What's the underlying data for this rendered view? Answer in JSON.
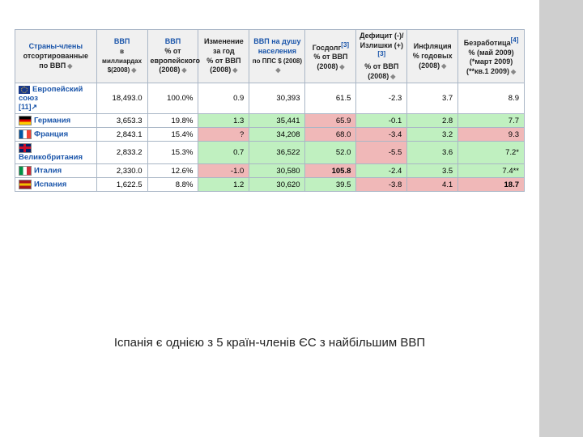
{
  "caption": "Іспанія є однією з 5 країн-членів ЄС з найбільшим ВВП",
  "columns": [
    {
      "main": "Страны-члены",
      "sub": "отсортированные по ВВП",
      "blueMain": true
    },
    {
      "main": "ВВП",
      "sub": "в миллиардах $(2008)",
      "blueMain": true,
      "subSmall": true
    },
    {
      "main": "ВВП",
      "sub": "% от европейского (2008)",
      "blueMain": true
    },
    {
      "main": "Изменение за год",
      "sub": "% от ВВП (2008)"
    },
    {
      "main": "ВВП на душу населения",
      "sub": "по ППС $ (2008)",
      "blueMain": true,
      "subSmall": true
    },
    {
      "main": "Госдолг",
      "sup": "[3]",
      "sub": "% от ВВП (2008)"
    },
    {
      "main": "Дефицит (-)/ Излишки (+)",
      "sup": "[3]",
      "sub": "% от ВВП (2008)"
    },
    {
      "main": "Инфляция",
      "sub": "% годовых (2008)"
    },
    {
      "main": "Безработица",
      "sup": "[4]",
      "sub": "% (май 2009) (*март 2009) (**кв.1 2009)"
    }
  ],
  "colWidths": [
    "16%",
    "10%",
    "10%",
    "10%",
    "11%",
    "10%",
    "10%",
    "10%",
    "13%"
  ],
  "euRow": {
    "label": "Европейский союз",
    "ref": "[11]↗",
    "cells": [
      "18,493.0",
      "100.0%",
      "0.9",
      "30,393",
      "61.5",
      "-2.3",
      "3.7",
      "8.9"
    ]
  },
  "rows": [
    {
      "label": "Германия",
      "flag": [
        "#000000",
        "#dd0000",
        "#ffcc00"
      ],
      "flagDir": "h",
      "cells": [
        {
          "v": "3,653.3"
        },
        {
          "v": "19.8%"
        },
        {
          "v": "1.3",
          "c": "g"
        },
        {
          "v": "35,441",
          "c": "g"
        },
        {
          "v": "65.9",
          "c": "r"
        },
        {
          "v": "-0.1",
          "c": "g"
        },
        {
          "v": "2.8",
          "c": "g"
        },
        {
          "v": "7.7",
          "c": "g"
        }
      ]
    },
    {
      "label": "Франция",
      "flag": [
        "#0055a4",
        "#ffffff",
        "#ef4135"
      ],
      "flagDir": "v",
      "cells": [
        {
          "v": "2,843.1"
        },
        {
          "v": "15.4%"
        },
        {
          "v": "?",
          "c": "r"
        },
        {
          "v": "34,208",
          "c": "g"
        },
        {
          "v": "68.0",
          "c": "r"
        },
        {
          "v": "-3.4",
          "c": "r"
        },
        {
          "v": "3.2",
          "c": "g"
        },
        {
          "v": "9.3",
          "c": "r"
        }
      ]
    },
    {
      "label": "Великобритания",
      "flag": [
        "#012169",
        "#ffffff",
        "#c8102e"
      ],
      "flagDir": "uk",
      "cells": [
        {
          "v": "2,833.2"
        },
        {
          "v": "15.3%"
        },
        {
          "v": "0.7",
          "c": "g"
        },
        {
          "v": "36,522",
          "c": "g"
        },
        {
          "v": "52.0",
          "c": "g"
        },
        {
          "v": "-5.5",
          "c": "r"
        },
        {
          "v": "3.6",
          "c": "g"
        },
        {
          "v": "7.2*",
          "c": "g"
        }
      ]
    },
    {
      "label": "Италия",
      "flag": [
        "#009246",
        "#ffffff",
        "#ce2b37"
      ],
      "flagDir": "v",
      "cells": [
        {
          "v": "2,330.0"
        },
        {
          "v": "12.6%"
        },
        {
          "v": "-1.0",
          "c": "r"
        },
        {
          "v": "30,580",
          "c": "g"
        },
        {
          "v": "105.8",
          "c": "r",
          "b": true
        },
        {
          "v": "-2.4",
          "c": "g"
        },
        {
          "v": "3.5",
          "c": "g"
        },
        {
          "v": "7.4**",
          "c": "g"
        }
      ]
    },
    {
      "label": "Испания",
      "flag": [
        "#aa151b",
        "#f1bf00",
        "#aa151b"
      ],
      "flagDir": "h",
      "cells": [
        {
          "v": "1,622.5"
        },
        {
          "v": "8.8%"
        },
        {
          "v": "1.2",
          "c": "g"
        },
        {
          "v": "30,620",
          "c": "g"
        },
        {
          "v": "39.5",
          "c": "g"
        },
        {
          "v": "-3.8",
          "c": "r"
        },
        {
          "v": "4.1",
          "c": "r"
        },
        {
          "v": "18.7",
          "c": "r",
          "b": true
        }
      ]
    }
  ]
}
